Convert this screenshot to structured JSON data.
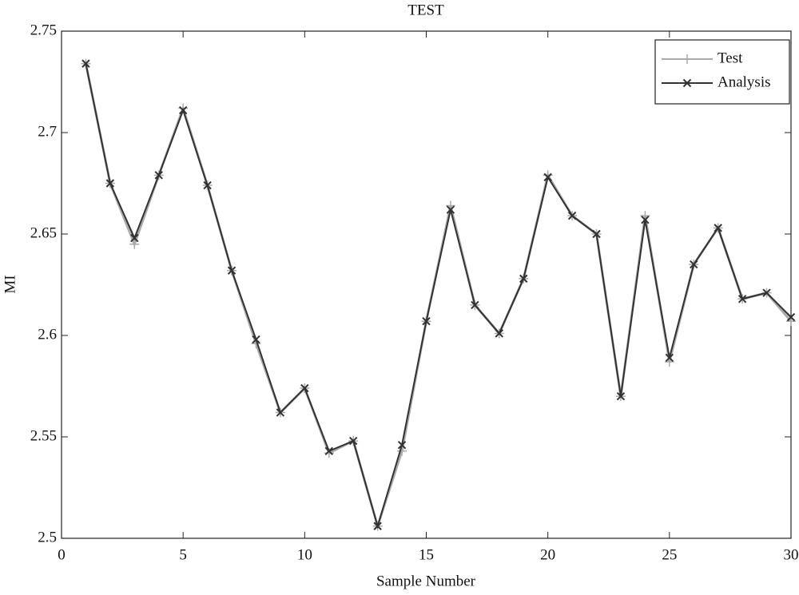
{
  "chart_data": {
    "type": "line",
    "title": "TEST",
    "x_label": "Sample Number",
    "y_label": "MI",
    "x": [
      1,
      2,
      3,
      4,
      5,
      6,
      7,
      8,
      9,
      10,
      11,
      12,
      13,
      14,
      15,
      16,
      17,
      18,
      19,
      20,
      21,
      22,
      23,
      24,
      25,
      26,
      27,
      28,
      29,
      30
    ],
    "series": [
      {
        "name": "Test",
        "color": "#aaaaaa",
        "marker": "+",
        "values": [
          2.734,
          2.675,
          2.645,
          2.679,
          2.712,
          2.674,
          2.632,
          2.596,
          2.562,
          2.574,
          2.542,
          2.548,
          2.506,
          2.543,
          2.607,
          2.664,
          2.615,
          2.601,
          2.628,
          2.679,
          2.659,
          2.65,
          2.57,
          2.659,
          2.587,
          2.635,
          2.653,
          2.618,
          2.621,
          2.607
        ]
      },
      {
        "name": "Analysis",
        "color": "#333333",
        "marker": "x",
        "values": [
          2.734,
          2.675,
          2.648,
          2.679,
          2.711,
          2.674,
          2.632,
          2.598,
          2.562,
          2.574,
          2.543,
          2.548,
          2.506,
          2.546,
          2.607,
          2.662,
          2.615,
          2.601,
          2.628,
          2.678,
          2.659,
          2.65,
          2.57,
          2.657,
          2.589,
          2.635,
          2.653,
          2.618,
          2.621,
          2.609
        ]
      }
    ],
    "xlim": [
      0,
      30
    ],
    "xticks": [
      0,
      5,
      10,
      15,
      20,
      25,
      30
    ],
    "ylim": [
      2.5,
      2.75
    ],
    "yticks": [
      2.5,
      2.55,
      2.6,
      2.65,
      2.7,
      2.75
    ],
    "grid": false,
    "legend": "northeast"
  }
}
